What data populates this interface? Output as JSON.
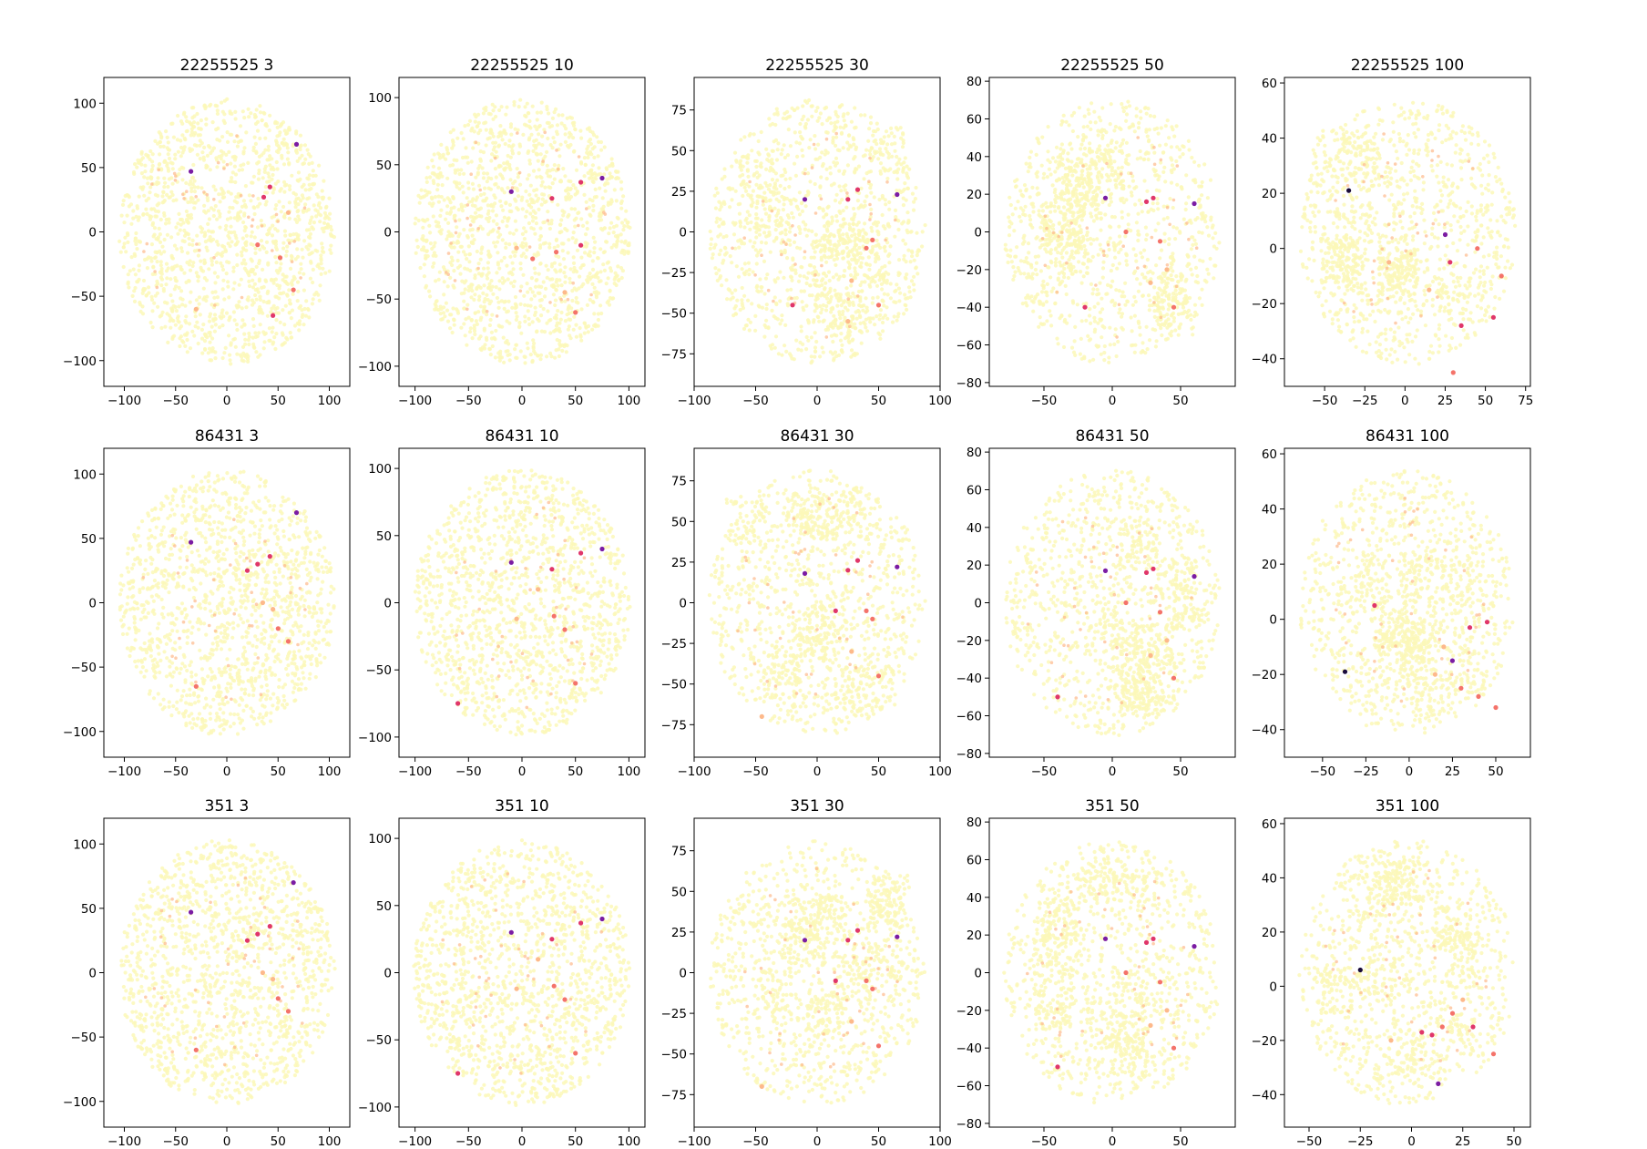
{
  "figure": {
    "background": "#ffffff",
    "colors": {
      "base": "#fcf8b8",
      "accent_light": "#fdb98b",
      "accent_mid": "#f4736a",
      "accent_red": "#e0366a",
      "accent_purple": "#7b1ca3",
      "accent_dark": "#1a0c3a"
    }
  },
  "chart_data": [
    {
      "type": "scatter",
      "title": "22255525 3",
      "xlim": [
        -120,
        120
      ],
      "ylim": [
        -120,
        120
      ],
      "xticks": [
        -100,
        -50,
        0,
        50,
        100
      ],
      "yticks": [
        -100,
        -50,
        0,
        50,
        100
      ],
      "x": [
        68,
        42,
        36,
        -35,
        52,
        30,
        60,
        65,
        -30,
        45
      ],
      "y": [
        68,
        35,
        27,
        47,
        -20,
        -10,
        15,
        -45,
        -60,
        -65
      ],
      "grid": false,
      "legend": "none",
      "cloud": "round"
    },
    {
      "type": "scatter",
      "title": "22255525 10",
      "xlim": [
        -115,
        115
      ],
      "ylim": [
        -115,
        115
      ],
      "xticks": [
        -100,
        -50,
        0,
        50,
        100
      ],
      "yticks": [
        -100,
        -50,
        0,
        50,
        100
      ],
      "x": [
        75,
        55,
        28,
        -10,
        32,
        50,
        -5,
        10,
        40,
        55
      ],
      "y": [
        40,
        37,
        25,
        30,
        -15,
        -60,
        -12,
        -20,
        -45,
        -10
      ],
      "grid": false,
      "legend": "none",
      "cloud": "round"
    },
    {
      "type": "scatter",
      "title": "22255525 30",
      "xlim": [
        -100,
        100
      ],
      "ylim": [
        -95,
        95
      ],
      "xticks": [
        -100,
        -50,
        0,
        50,
        100
      ],
      "yticks": [
        -75,
        -50,
        -25,
        0,
        25,
        50,
        75
      ],
      "x": [
        65,
        33,
        25,
        -10,
        50,
        40,
        28,
        45,
        25,
        -20
      ],
      "y": [
        23,
        26,
        20,
        20,
        -45,
        -10,
        -30,
        -5,
        -55,
        -45
      ],
      "grid": false,
      "legend": "none",
      "cloud": "lobed"
    },
    {
      "type": "scatter",
      "title": "22255525 50",
      "xlim": [
        -90,
        90
      ],
      "ylim": [
        -82,
        82
      ],
      "xticks": [
        -50,
        0,
        50
      ],
      "yticks": [
        -80,
        -60,
        -40,
        20,
        0,
        -20,
        40,
        60,
        80
      ],
      "x": [
        60,
        30,
        25,
        -5,
        45,
        35,
        28,
        10,
        40,
        -20
      ],
      "y": [
        15,
        18,
        16,
        18,
        -40,
        -5,
        -27,
        0,
        -20,
        -40
      ],
      "grid": false,
      "legend": "none",
      "cloud": "lobed"
    },
    {
      "type": "scatter",
      "title": "22255525 100",
      "xlim": [
        -75,
        78
      ],
      "ylim": [
        -50,
        62
      ],
      "xticks": [
        -50,
        -25,
        0,
        25,
        50,
        75
      ],
      "yticks": [
        -40,
        -20,
        0,
        20,
        40,
        60
      ],
      "x": [
        -35,
        35,
        28,
        25,
        60,
        45,
        15,
        30,
        -10,
        55
      ],
      "y": [
        21,
        -28,
        -5,
        5,
        -10,
        0,
        -15,
        -45,
        -5,
        -25
      ],
      "grid": false,
      "legend": "none",
      "cloud": "lobed"
    },
    {
      "type": "scatter",
      "title": "86431 3",
      "xlim": [
        -120,
        120
      ],
      "ylim": [
        -120,
        120
      ],
      "xticks": [
        -100,
        -50,
        0,
        50,
        100
      ],
      "yticks": [
        -100,
        -50,
        0,
        50,
        100
      ],
      "x": [
        68,
        42,
        30,
        -35,
        50,
        60,
        35,
        -30,
        45,
        20
      ],
      "y": [
        70,
        36,
        30,
        47,
        -20,
        -30,
        0,
        -65,
        -5,
        25
      ],
      "grid": false,
      "legend": "none",
      "cloud": "round"
    },
    {
      "type": "scatter",
      "title": "86431 10",
      "xlim": [
        -115,
        115
      ],
      "ylim": [
        -115,
        115
      ],
      "xticks": [
        -100,
        -50,
        0,
        50,
        100
      ],
      "yticks": [
        -100,
        -50,
        0,
        50,
        100
      ],
      "x": [
        75,
        55,
        28,
        -10,
        50,
        30,
        -5,
        40,
        15,
        -60
      ],
      "y": [
        40,
        37,
        25,
        30,
        -60,
        -10,
        -12,
        -20,
        10,
        -75
      ],
      "grid": false,
      "legend": "none",
      "cloud": "round"
    },
    {
      "type": "scatter",
      "title": "86431 30",
      "xlim": [
        -100,
        100
      ],
      "ylim": [
        -95,
        95
      ],
      "xticks": [
        -100,
        -50,
        0,
        50,
        100
      ],
      "yticks": [
        -75,
        -50,
        -25,
        0,
        25,
        50,
        75
      ],
      "x": [
        65,
        33,
        25,
        -10,
        50,
        40,
        28,
        45,
        -45,
        15
      ],
      "y": [
        22,
        26,
        20,
        18,
        -45,
        -5,
        -30,
        -10,
        -70,
        -5
      ],
      "grid": false,
      "legend": "none",
      "cloud": "lobed"
    },
    {
      "type": "scatter",
      "title": "86431 50",
      "xlim": [
        -90,
        90
      ],
      "ylim": [
        -82,
        82
      ],
      "xticks": [
        -50,
        0,
        50
      ],
      "yticks": [
        -80,
        -60,
        -40,
        20,
        0,
        -20,
        40,
        60,
        80
      ],
      "x": [
        60,
        30,
        25,
        -5,
        45,
        35,
        28,
        10,
        40,
        -40
      ],
      "y": [
        14,
        18,
        16,
        17,
        -40,
        -5,
        -28,
        0,
        -20,
        -50
      ],
      "grid": false,
      "legend": "none",
      "cloud": "lobed"
    },
    {
      "type": "scatter",
      "title": "86431 100",
      "xlim": [
        -72,
        70
      ],
      "ylim": [
        -50,
        62
      ],
      "xticks": [
        -50,
        -25,
        0,
        25,
        50
      ],
      "yticks": [
        -40,
        -20,
        0,
        20,
        40,
        60
      ],
      "x": [
        -37,
        45,
        35,
        25,
        50,
        40,
        20,
        30,
        15,
        -20
      ],
      "y": [
        -19,
        -1,
        -3,
        -15,
        -32,
        -28,
        -10,
        -25,
        -20,
        5
      ],
      "grid": false,
      "legend": "none",
      "cloud": "lobed"
    },
    {
      "type": "scatter",
      "title": "351 3",
      "xlim": [
        -120,
        120
      ],
      "ylim": [
        -120,
        120
      ],
      "xticks": [
        -100,
        -50,
        0,
        50,
        100
      ],
      "yticks": [
        -100,
        -50,
        0,
        50,
        100
      ],
      "x": [
        65,
        42,
        30,
        -35,
        50,
        60,
        35,
        -30,
        45,
        20
      ],
      "y": [
        70,
        36,
        30,
        47,
        -20,
        -30,
        0,
        -60,
        -5,
        25
      ],
      "grid": false,
      "legend": "none",
      "cloud": "round"
    },
    {
      "type": "scatter",
      "title": "351 10",
      "xlim": [
        -115,
        115
      ],
      "ylim": [
        -115,
        115
      ],
      "xticks": [
        -100,
        -50,
        0,
        50,
        100
      ],
      "yticks": [
        -100,
        -50,
        0,
        50,
        100
      ],
      "x": [
        75,
        55,
        28,
        -10,
        50,
        30,
        -5,
        40,
        15,
        -60
      ],
      "y": [
        40,
        37,
        25,
        30,
        -60,
        -10,
        -12,
        -20,
        10,
        -75
      ],
      "grid": false,
      "legend": "none",
      "cloud": "round"
    },
    {
      "type": "scatter",
      "title": "351 30",
      "xlim": [
        -100,
        100
      ],
      "ylim": [
        -95,
        95
      ],
      "xticks": [
        -100,
        -50,
        0,
        50,
        100
      ],
      "yticks": [
        -75,
        -50,
        -25,
        0,
        25,
        50,
        75
      ],
      "x": [
        65,
        33,
        25,
        -10,
        50,
        40,
        28,
        45,
        -45,
        15
      ],
      "y": [
        22,
        26,
        20,
        20,
        -45,
        -5,
        -30,
        -10,
        -70,
        -5
      ],
      "grid": false,
      "legend": "none",
      "cloud": "lobed"
    },
    {
      "type": "scatter",
      "title": "351 50",
      "xlim": [
        -90,
        90
      ],
      "ylim": [
        -82,
        82
      ],
      "xticks": [
        -50,
        0,
        50
      ],
      "yticks": [
        -80,
        -60,
        -40,
        20,
        0,
        -20,
        40,
        60,
        80
      ],
      "x": [
        60,
        30,
        25,
        -5,
        45,
        35,
        28,
        10,
        40,
        -40
      ],
      "y": [
        14,
        18,
        16,
        18,
        -40,
        -5,
        -28,
        0,
        -20,
        -50
      ],
      "grid": false,
      "legend": "none",
      "cloud": "lobed"
    },
    {
      "type": "scatter",
      "title": "351 100",
      "xlim": [
        -62,
        58
      ],
      "ylim": [
        -52,
        62
      ],
      "xticks": [
        -50,
        -25,
        0,
        25,
        50
      ],
      "yticks": [
        -40,
        -20,
        0,
        20,
        40,
        60
      ],
      "x": [
        -25,
        5,
        10,
        13,
        15,
        20,
        25,
        40,
        -10,
        30
      ],
      "y": [
        6,
        -17,
        -18,
        -36,
        -15,
        -10,
        -5,
        -25,
        -20,
        -15
      ],
      "grid": false,
      "legend": "none",
      "cloud": "lobed"
    }
  ]
}
